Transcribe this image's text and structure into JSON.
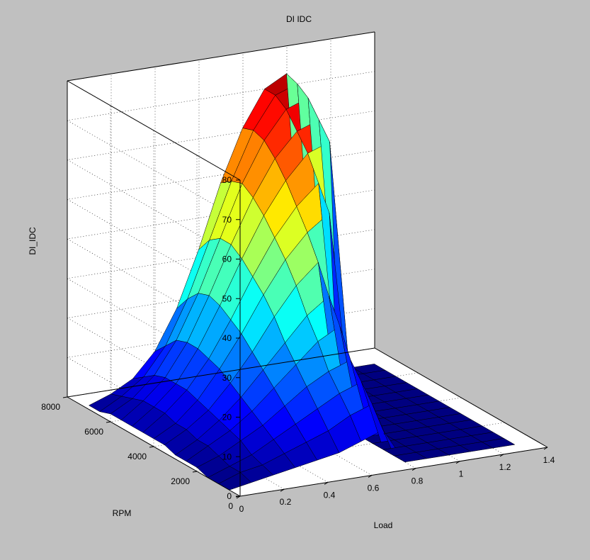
{
  "chart_data": {
    "type": "surface3d",
    "title": "DI IDC",
    "xlabel": "Load",
    "ylabel": "RPM",
    "zlabel": "DI_IDC",
    "xlim": [
      0,
      1.4
    ],
    "ylim": [
      0,
      8000
    ],
    "zlim": [
      0,
      80
    ],
    "xticks": [
      "0",
      "0.2",
      "0.4",
      "0.6",
      "0.8",
      "1",
      "1.2",
      "1.4"
    ],
    "yticks": [
      "0",
      "2000",
      "4000",
      "6000",
      "8000"
    ],
    "zticks": [
      "0",
      "10",
      "20",
      "30",
      "40",
      "50",
      "60",
      "70",
      "80"
    ],
    "grid": true,
    "colormap": "jet",
    "x": [
      0,
      0.1,
      0.2,
      0.3,
      0.4,
      0.5,
      0.6,
      0.7,
      0.8,
      0.9,
      1.0,
      1.1,
      1.2,
      1.3
    ],
    "y": [
      500,
      1000,
      1500,
      2000,
      2500,
      3000,
      3500,
      4000,
      4500,
      5000,
      5500,
      6000,
      6500,
      7000
    ],
    "z": [
      [
        0,
        1,
        2,
        3,
        4,
        5,
        7,
        9,
        0,
        0,
        0,
        0,
        0,
        0
      ],
      [
        0,
        2,
        3,
        5,
        7,
        9,
        12,
        14,
        0,
        0,
        0,
        0,
        0,
        0
      ],
      [
        0,
        2,
        4,
        7,
        10,
        13,
        16,
        18,
        0,
        0,
        0,
        0,
        0,
        0
      ],
      [
        1,
        3,
        6,
        9,
        13,
        17,
        20,
        22,
        0,
        0,
        0,
        0,
        0,
        0
      ],
      [
        1,
        4,
        7,
        11,
        16,
        21,
        26,
        29,
        0,
        0,
        0,
        0,
        0,
        0
      ],
      [
        1,
        4,
        8,
        13,
        19,
        25,
        31,
        35,
        0,
        0,
        0,
        0,
        0,
        0
      ],
      [
        2,
        5,
        9,
        15,
        22,
        30,
        37,
        42,
        0,
        0,
        0,
        0,
        0,
        0
      ],
      [
        2,
        5,
        10,
        17,
        25,
        34,
        42,
        48,
        52,
        0,
        0,
        0,
        0,
        0
      ],
      [
        2,
        6,
        11,
        18,
        27,
        37,
        46,
        53,
        58,
        0,
        0,
        0,
        0,
        0
      ],
      [
        2,
        6,
        11,
        19,
        29,
        40,
        50,
        58,
        64,
        66,
        0,
        0,
        0,
        0
      ],
      [
        2,
        6,
        11,
        19,
        30,
        42,
        53,
        62,
        68,
        70,
        0,
        0,
        0,
        0
      ],
      [
        2,
        5,
        10,
        18,
        29,
        42,
        55,
        65,
        72,
        74,
        0,
        0,
        0,
        0
      ],
      [
        1,
        4,
        8,
        15,
        26,
        40,
        54,
        66,
        74,
        76,
        0,
        0,
        0,
        0
      ],
      [
        1,
        3,
        6,
        12,
        22,
        36,
        52,
        65,
        74,
        77,
        0,
        0,
        0,
        0
      ]
    ]
  }
}
